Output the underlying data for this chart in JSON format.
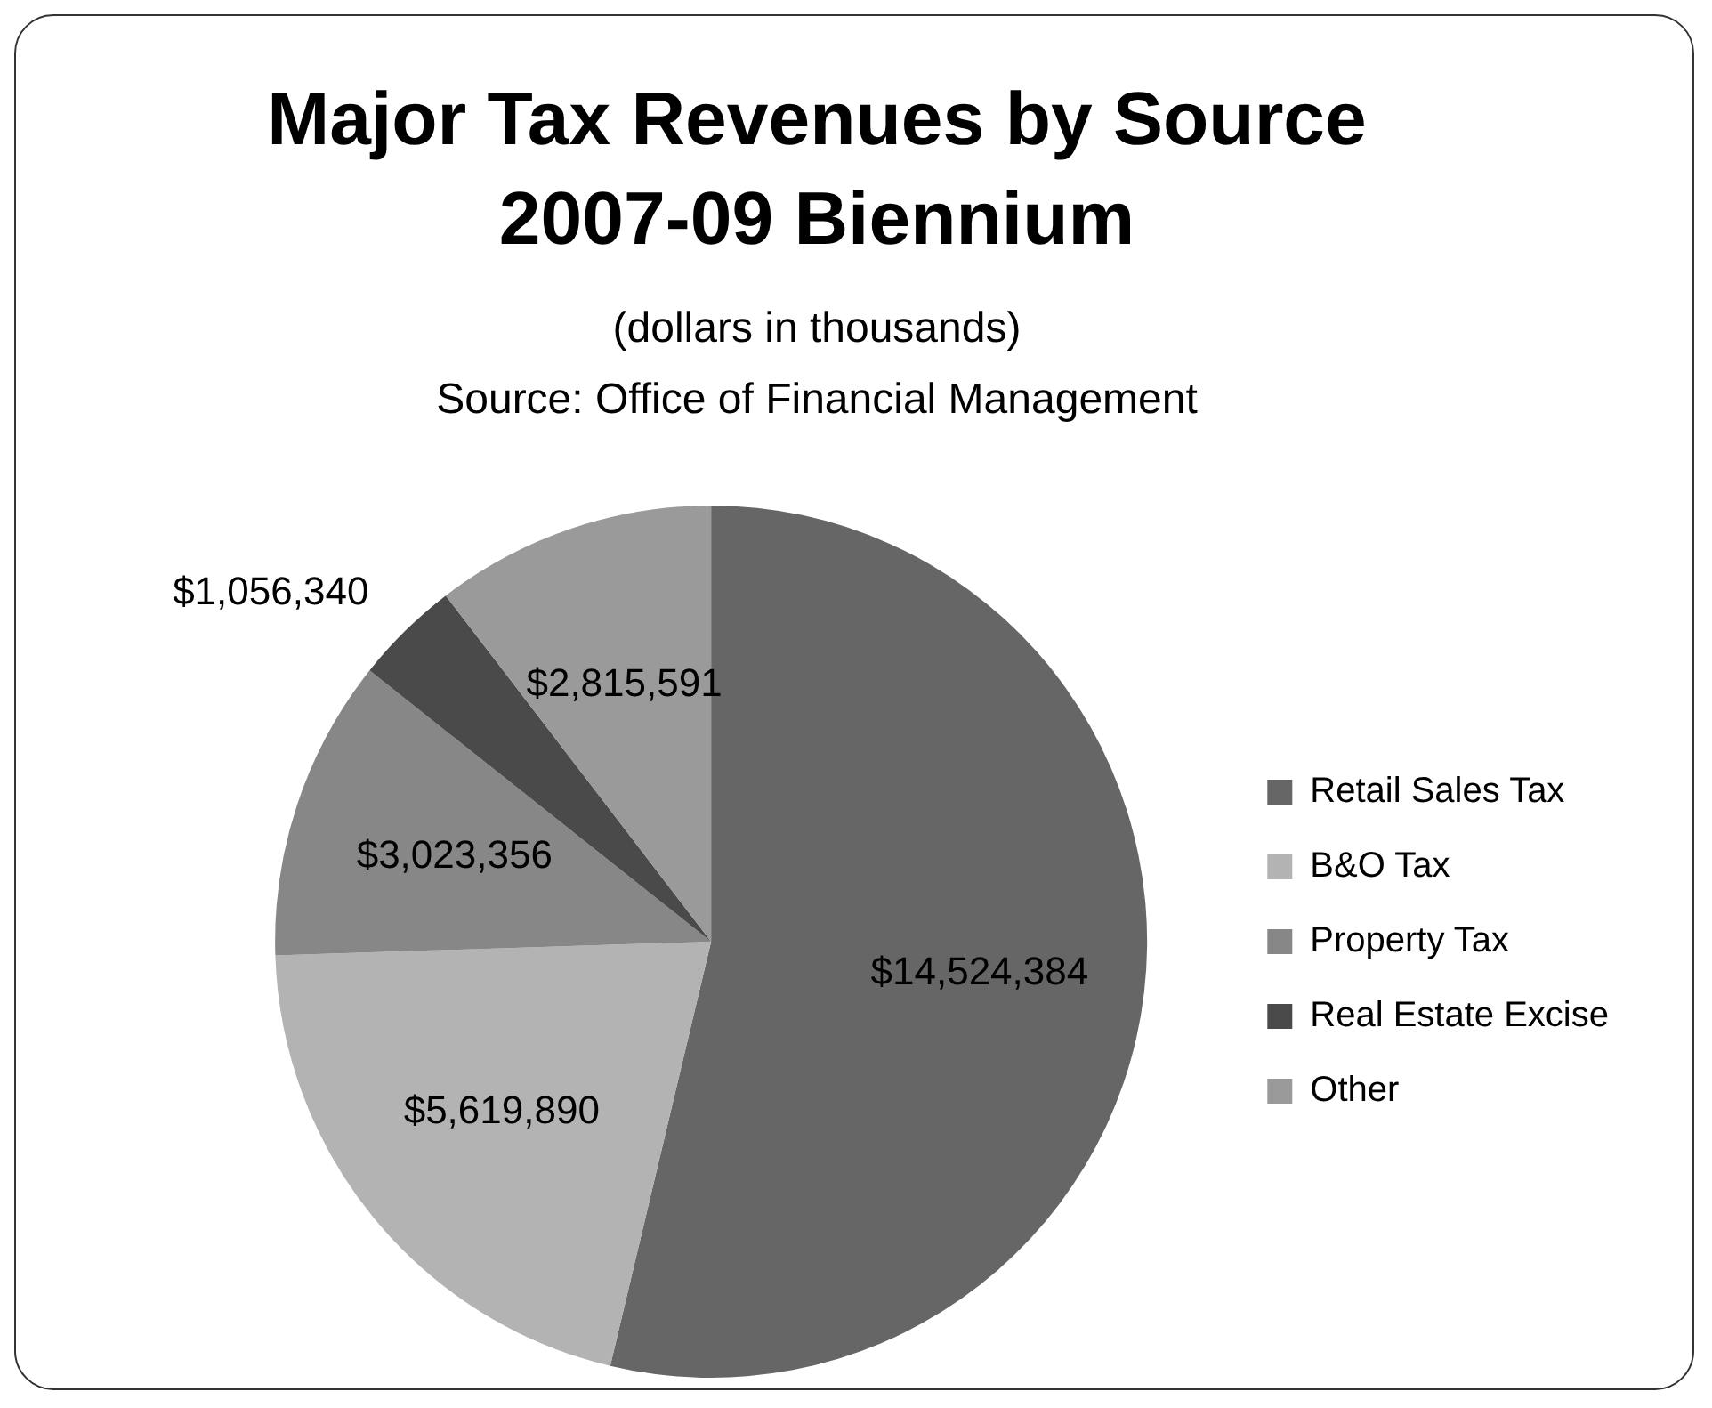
{
  "chart_data": {
    "type": "pie",
    "title": "Major Tax Revenues by Source 2007-09 Biennium",
    "subtitle": "(dollars in thousands)",
    "annotations": [
      "Source: Office of Financial Management"
    ],
    "categories": [
      "Retail Sales Tax",
      "B&O Tax",
      "Property Tax",
      "Real Estate Excise",
      "Other"
    ],
    "values": [
      14524384,
      5619890,
      3023356,
      1056340,
      2815591
    ],
    "value_labels": [
      "$14,524,384",
      "$5,619,890",
      "$3,023,356",
      "$1,056,340",
      "$2,815,591"
    ],
    "colors": [
      "#666666",
      "#b3b3b3",
      "#878787",
      "#4a4a4a",
      "#9a9a9a"
    ],
    "legend": "right"
  }
}
